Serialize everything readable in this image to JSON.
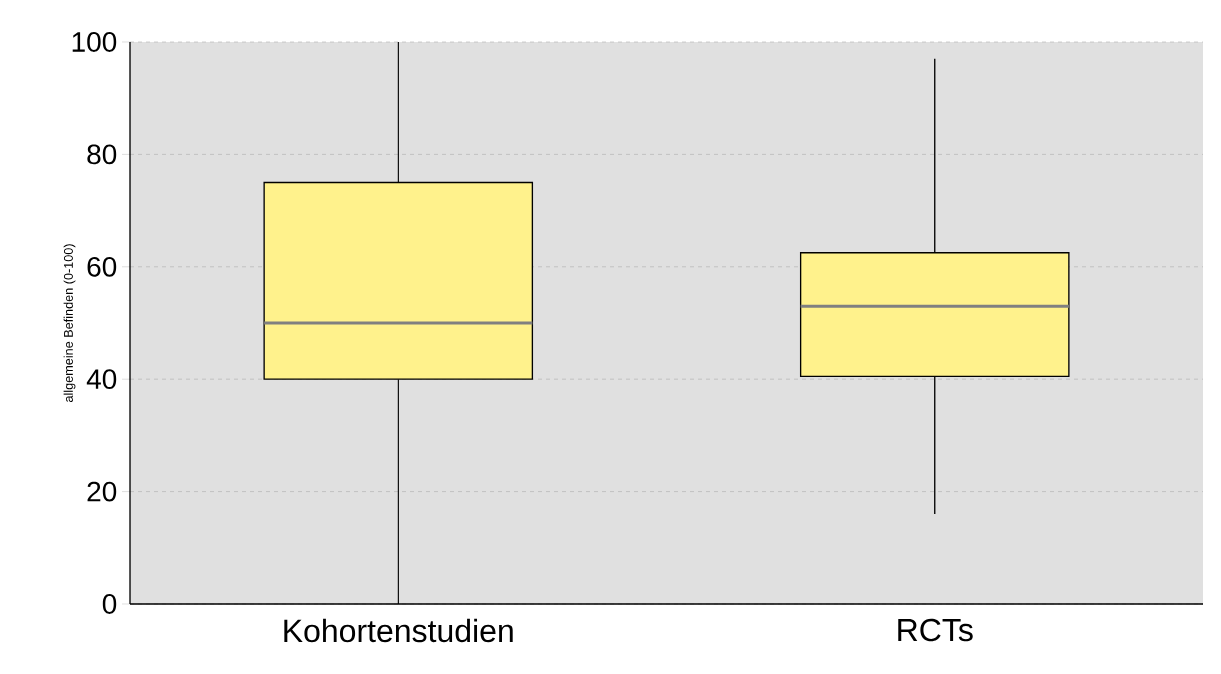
{
  "chart_data": {
    "type": "box",
    "ylabel": "allgemeine Befinden (0-100)",
    "categories": [
      "Kohortenstudien",
      "RCTs"
    ],
    "boxes": [
      {
        "low": 0,
        "q1": 40,
        "median": 50,
        "q3": 75,
        "high": 100
      },
      {
        "low": 16,
        "q1": 40.5,
        "median": 53,
        "q3": 62.5,
        "high": 97
      }
    ],
    "color": "#fff28c",
    "ylim": [
      0,
      100
    ],
    "yticks": [
      0,
      20,
      40,
      60,
      80,
      100
    ],
    "grid": "y"
  }
}
